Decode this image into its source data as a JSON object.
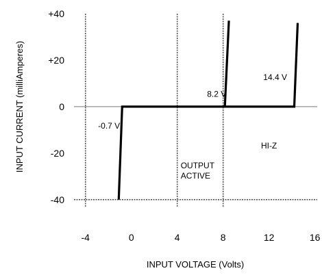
{
  "chart_data": {
    "type": "line",
    "xlabel": "INPUT VOLTAGE  (Volts)",
    "ylabel": "INPUT CURRENT  (milliAmperes)",
    "xlim": [
      -5,
      16.2
    ],
    "ylim": [
      -43,
      40
    ],
    "x_ticks": [
      -4,
      0,
      4,
      8,
      12,
      16
    ],
    "x_tick_labels": [
      "-4",
      "0",
      "4",
      "8",
      "12",
      "16"
    ],
    "y_ticks": [
      40,
      20,
      0,
      -20,
      -40
    ],
    "y_tick_labels": [
      "+40",
      "+20",
      "0",
      "-20",
      "-40"
    ],
    "grid": {
      "dashed_x": [
        -4,
        4,
        8
      ],
      "dashed_y": [
        -40
      ],
      "solid_x": [],
      "solid_y": [
        0
      ]
    },
    "series": [
      {
        "values": [
          {
            "x": -1.1,
            "y": -40
          },
          {
            "x": -0.8,
            "y": 0
          },
          {
            "x": 14.2,
            "y": 0
          },
          {
            "x": 14.5,
            "y": 36
          }
        ]
      },
      {
        "values": [
          {
            "x": 8.15,
            "y": 0
          },
          {
            "x": 8.5,
            "y": 37
          }
        ]
      }
    ],
    "annotations": [
      {
        "text": "-0.7 V",
        "x": -2.9,
        "y": -9.5
      },
      {
        "text": "8.2 V",
        "x": 6.6,
        "y": 4.3
      },
      {
        "text": "14.4 V",
        "x": 11.5,
        "y": 11.5
      },
      {
        "text": "HI-Z",
        "x": 11.3,
        "y": -18
      },
      {
        "text": "OUTPUT",
        "x": 4.3,
        "y": -26.5
      },
      {
        "text": "ACTIVE",
        "x": 4.3,
        "y": -31
      }
    ]
  }
}
